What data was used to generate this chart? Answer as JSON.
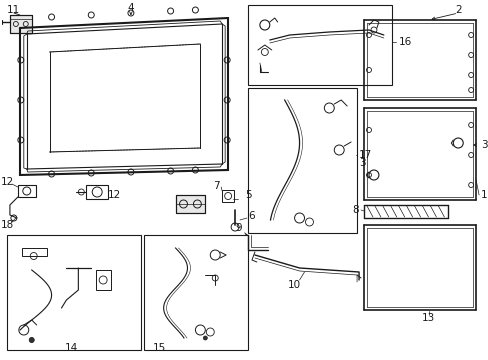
{
  "background_color": "#ffffff",
  "line_color": "#1a1a1a",
  "figsize": [
    4.89,
    3.6
  ],
  "dpi": 100,
  "label_fs": 7.5,
  "small_fs": 6.5
}
